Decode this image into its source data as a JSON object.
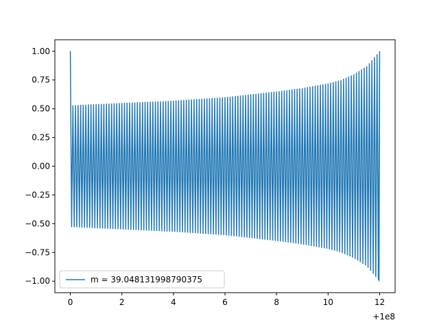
{
  "chart_data": {
    "type": "line",
    "title": "",
    "xlabel": "",
    "ylabel": "",
    "x_offset_label": "+1e8",
    "x_ticks": [
      "0",
      "2",
      "4",
      "6",
      "8",
      "10",
      "12"
    ],
    "y_ticks": [
      "1.00",
      "0.75",
      "0.50",
      "0.25",
      "0.00",
      "−0.25",
      "−0.50",
      "−0.75",
      "−1.00"
    ],
    "xlim": [
      -0.6,
      12.6
    ],
    "ylim": [
      -1.1,
      1.1
    ],
    "grid": false,
    "legend_placement": "lower-left",
    "series": [
      {
        "name": "m = 39.048131998790375",
        "color": "#1f77b4",
        "cycles": 120,
        "x_range": [
          0,
          12
        ],
        "envelope": [
          {
            "x": 0.1,
            "y": 0.53
          },
          {
            "x": 2,
            "y": 0.55
          },
          {
            "x": 4,
            "y": 0.57
          },
          {
            "x": 6,
            "y": 0.6
          },
          {
            "x": 8,
            "y": 0.65
          },
          {
            "x": 9,
            "y": 0.68
          },
          {
            "x": 10,
            "y": 0.72
          },
          {
            "x": 10.5,
            "y": 0.75
          },
          {
            "x": 11,
            "y": 0.8
          },
          {
            "x": 11.5,
            "y": 0.87
          },
          {
            "x": 12,
            "y": 1.0
          }
        ],
        "start_point": {
          "x": 0,
          "y": 1.0
        }
      }
    ]
  }
}
